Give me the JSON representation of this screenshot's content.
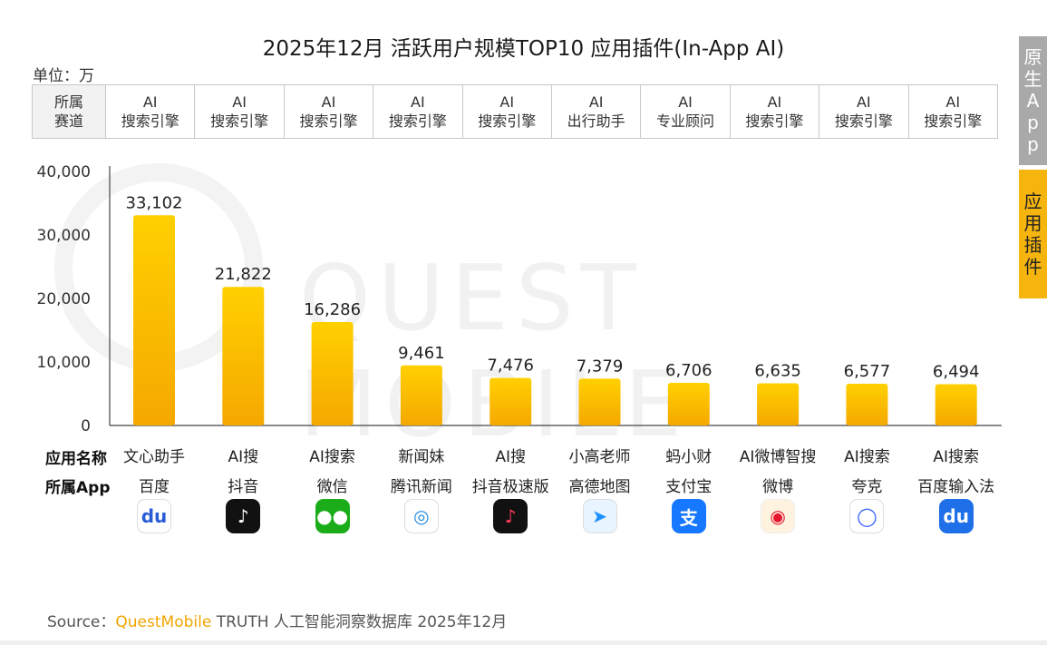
{
  "title": "2025年12月 活跃用户规模TOP10 应用插件(In-App AI)",
  "unit_label": "单位：万",
  "track_header": [
    "所属",
    "赛道"
  ],
  "tracks": [
    [
      "AI",
      "搜索引擎"
    ],
    [
      "AI",
      "搜索引擎"
    ],
    [
      "AI",
      "搜索引擎"
    ],
    [
      "AI",
      "搜索引擎"
    ],
    [
      "AI",
      "搜索引擎"
    ],
    [
      "AI",
      "出行助手"
    ],
    [
      "AI",
      "专业顾问"
    ],
    [
      "AI",
      "搜索引擎"
    ],
    [
      "AI",
      "搜索引擎"
    ],
    [
      "AI",
      "搜索引擎"
    ]
  ],
  "row_labels": {
    "name": "应用名称",
    "app": "所属App"
  },
  "watermark": "QUEST MOBILE",
  "side_tabs": {
    "native": "原生App",
    "plugin": "应用插件"
  },
  "source": {
    "prefix": "Source：",
    "brand": "QuestMobile",
    "rest": " TRUTH 人工智能洞察数据库 2025年12月"
  },
  "colors": {
    "bar_top": "#ffd000",
    "bar_bottom": "#f5a800",
    "accent": "#f5b50e",
    "brand": "#f0a500"
  },
  "chart_data": {
    "type": "bar",
    "categories": [
      "文心助手",
      "AI搜",
      "AI搜索",
      "新闻妹",
      "AI搜",
      "小高老师",
      "蚂小财",
      "AI微博智搜",
      "AI搜索",
      "AI搜索"
    ],
    "apps": [
      "百度",
      "抖音",
      "微信",
      "腾讯新闻",
      "抖音极速版",
      "高德地图",
      "支付宝",
      "微博",
      "夸克",
      "百度输入法"
    ],
    "app_icons": [
      "baidu-icon",
      "douyin-icon",
      "wechat-icon",
      "tencent-news-icon",
      "douyin-lite-icon",
      "amap-icon",
      "alipay-icon",
      "weibo-icon",
      "quark-icon",
      "baidu-input-icon"
    ],
    "values": [
      33102,
      21822,
      16286,
      9461,
      7476,
      7379,
      6706,
      6635,
      6577,
      6494
    ],
    "value_labels": [
      "33,102",
      "21,822",
      "16,286",
      "9,461",
      "7,476",
      "7,379",
      "6,706",
      "6,635",
      "6,577",
      "6,494"
    ],
    "yticks": [
      0,
      10000,
      20000,
      30000,
      40000
    ],
    "ytick_labels": [
      "0",
      "10,000",
      "20,000",
      "30,000",
      "40,000"
    ],
    "ylim": [
      0,
      40000
    ],
    "grid": false,
    "legend": "none"
  }
}
